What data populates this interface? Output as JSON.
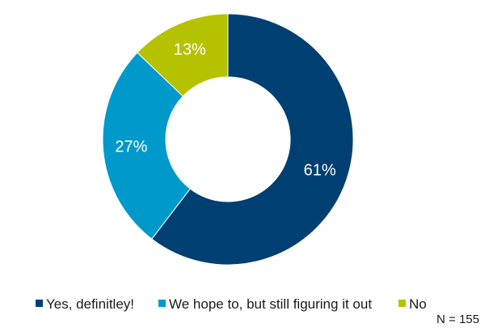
{
  "chart_data": {
    "type": "pie",
    "donut": true,
    "start_angle_deg": 0,
    "direction": "clockwise",
    "slices": [
      {
        "label": "Yes, definitley!",
        "value": 61,
        "value_label": "61%",
        "color": "#003f72"
      },
      {
        "label": "We hope to, but still figuring it out",
        "value": 27,
        "value_label": "27%",
        "color": "#0099cc"
      },
      {
        "label": "No",
        "value": 13,
        "value_label": "13%",
        "color": "#b5c200"
      }
    ],
    "legend": {
      "placement": "bottom"
    },
    "annotation": "N = 155"
  }
}
